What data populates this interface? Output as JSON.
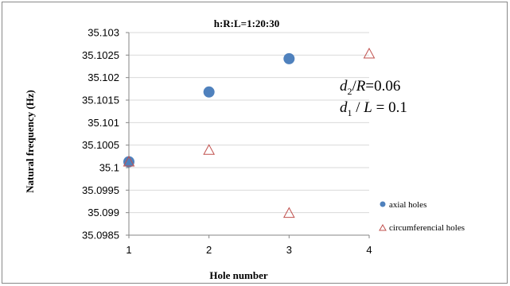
{
  "chart_data": {
    "type": "scatter",
    "title": "h:R:L=1:20:30",
    "xlabel": "Hole number",
    "ylabel": "Natural frequency (Hz)",
    "xlim": [
      1,
      4
    ],
    "ylim": [
      35.0985,
      35.103
    ],
    "x_ticks": [
      "1",
      "2",
      "3",
      "4"
    ],
    "y_ticks": [
      "35.103",
      "35.1025",
      "35.102",
      "35.1015",
      "35.101",
      "35.1005",
      "35.1",
      "35.0995",
      "35.099",
      "35.0985"
    ],
    "grid": "horizontal",
    "legend_position": "right",
    "series": [
      {
        "name": "axial holes",
        "marker": "circle",
        "color": "#4f81bd",
        "points": [
          [
            1,
            35.10013
          ],
          [
            2,
            35.10168
          ],
          [
            3,
            35.10242
          ]
        ]
      },
      {
        "name": "circumferencial holes",
        "marker": "triangle-open",
        "color": "#c0504d",
        "points": [
          [
            1,
            35.10012
          ],
          [
            2,
            35.10038
          ],
          [
            3,
            35.09898
          ],
          [
            4,
            35.10252
          ]
        ]
      }
    ],
    "annotations": {
      "line1": {
        "d": "d",
        "sub": "2",
        "over": "/",
        "var": "R",
        "rest": "=0.06"
      },
      "line2": {
        "d": "d",
        "sub": "1",
        "over": " / ",
        "var": "L",
        "rest": " = 0.1"
      }
    }
  }
}
